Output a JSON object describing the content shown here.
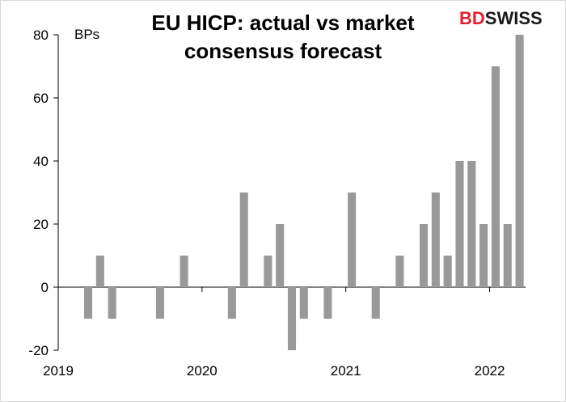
{
  "logo": {
    "part1": "BD",
    "part2": "SWISS",
    "accent": "#e3202c"
  },
  "chart_data": {
    "type": "bar",
    "title_lines": [
      "EU HICP: actual vs market",
      "consensus forecast"
    ],
    "unit_label": "BPs",
    "bar_color": "#999999",
    "ylim": [
      -20,
      80
    ],
    "y_ticks": [
      -20,
      0,
      20,
      40,
      60,
      80
    ],
    "x_tick_labels": [
      "2019",
      "2020",
      "2021",
      "2022"
    ],
    "legend": "none",
    "grid": false,
    "months": [
      "2019-01",
      "2019-02",
      "2019-03",
      "2019-04",
      "2019-05",
      "2019-06",
      "2019-07",
      "2019-08",
      "2019-09",
      "2019-10",
      "2019-11",
      "2019-12",
      "2020-01",
      "2020-02",
      "2020-03",
      "2020-04",
      "2020-05",
      "2020-06",
      "2020-07",
      "2020-08",
      "2020-09",
      "2020-10",
      "2020-11",
      "2020-12",
      "2021-01",
      "2021-02",
      "2021-03",
      "2021-04",
      "2021-05",
      "2021-06",
      "2021-07",
      "2021-08",
      "2021-09",
      "2021-10",
      "2021-11",
      "2021-12",
      "2022-01",
      "2022-02",
      "2022-03"
    ],
    "values": [
      0,
      0,
      -10,
      10,
      -10,
      0,
      0,
      0,
      -10,
      0,
      10,
      0,
      0,
      0,
      -10,
      30,
      0,
      10,
      20,
      -20,
      -10,
      0,
      -10,
      0,
      30,
      0,
      -10,
      0,
      10,
      0,
      20,
      30,
      10,
      40,
      40,
      20,
      70,
      20,
      80
    ]
  }
}
